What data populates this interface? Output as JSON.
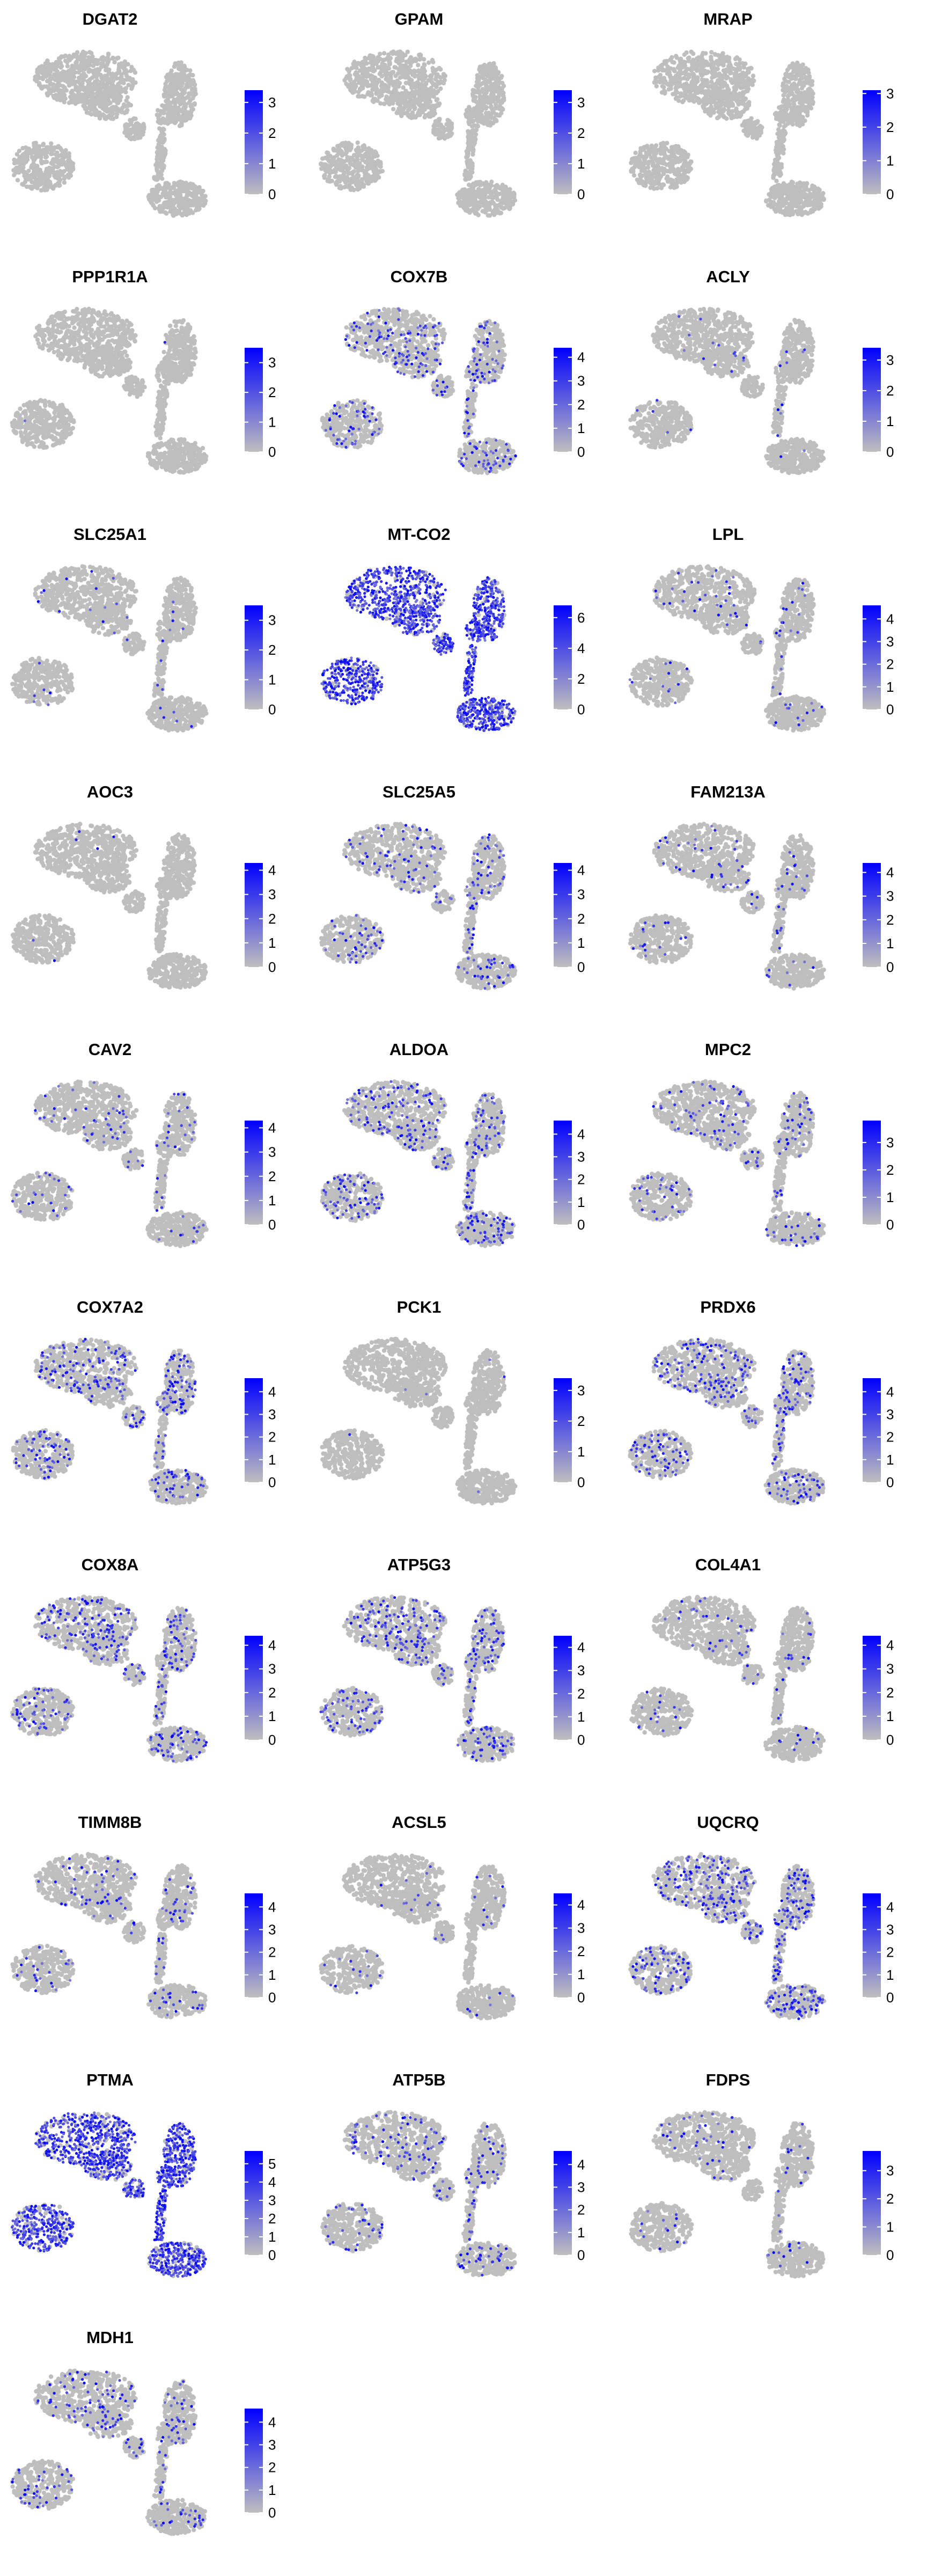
{
  "colors": {
    "low": "#BEBEBE",
    "high": "#0000FF",
    "background": "#FFFFFF",
    "text": "#000000"
  },
  "chart_data": [
    {
      "type": "scatter",
      "title": "DGAT2",
      "ylim": [
        0,
        3.4
      ],
      "ticks": [
        3,
        2,
        1,
        0
      ],
      "tick_labels": [
        "3",
        "2",
        "1",
        "0"
      ],
      "colorbar_max": 3.4,
      "expressing_fraction": 0.0,
      "seed": 11
    },
    {
      "type": "scatter",
      "title": "GPAM",
      "ylim": [
        0,
        3.4
      ],
      "ticks": [
        3,
        2,
        1,
        0
      ],
      "tick_labels": [
        "3",
        "2",
        "1",
        "0"
      ],
      "colorbar_max": 3.4,
      "expressing_fraction": 0.0,
      "seed": 12
    },
    {
      "type": "scatter",
      "title": "MRAP",
      "ylim": [
        0,
        3.1
      ],
      "ticks": [
        3,
        2,
        1,
        0
      ],
      "tick_labels": [
        "3",
        "2",
        "1",
        "0"
      ],
      "colorbar_max": 3.1,
      "expressing_fraction": 0.0,
      "seed": 13
    },
    {
      "type": "scatter",
      "title": "PPP1R1A",
      "ylim": [
        0,
        3.5
      ],
      "ticks": [
        3,
        2,
        1,
        0
      ],
      "tick_labels": [
        "3",
        "2",
        "1",
        "0"
      ],
      "colorbar_max": 3.5,
      "expressing_fraction": 0.002,
      "seed": 14
    },
    {
      "type": "scatter",
      "title": "COX7B",
      "ylim": [
        0,
        4.4
      ],
      "ticks": [
        4,
        3,
        2,
        1,
        0
      ],
      "tick_labels": [
        "4",
        "3",
        "2",
        "1",
        "0"
      ],
      "colorbar_max": 4.4,
      "expressing_fraction": 0.15,
      "seed": 15
    },
    {
      "type": "scatter",
      "title": "ACLY",
      "ylim": [
        0,
        3.4
      ],
      "ticks": [
        3,
        2,
        1,
        0
      ],
      "tick_labels": [
        "3",
        "2",
        "1",
        "0"
      ],
      "colorbar_max": 3.4,
      "expressing_fraction": 0.02,
      "seed": 16
    },
    {
      "type": "scatter",
      "title": "SLC25A1",
      "ylim": [
        0,
        3.5
      ],
      "ticks": [
        3,
        2,
        1,
        0
      ],
      "tick_labels": [
        "3",
        "2",
        "1",
        "0"
      ],
      "colorbar_max": 3.5,
      "expressing_fraction": 0.015,
      "seed": 17
    },
    {
      "type": "scatter",
      "title": "MT-CO2",
      "ylim": [
        0,
        6.8
      ],
      "ticks": [
        6,
        4,
        2,
        0
      ],
      "tick_labels": [
        "6",
        "4",
        "2",
        "0"
      ],
      "colorbar_max": 6.8,
      "expressing_fraction": 0.9,
      "seed": 18
    },
    {
      "type": "scatter",
      "title": "LPL",
      "ylim": [
        0,
        4.6
      ],
      "ticks": [
        4,
        3,
        2,
        1,
        0
      ],
      "tick_labels": [
        "4",
        "3",
        "2",
        "1",
        "0"
      ],
      "colorbar_max": 4.6,
      "expressing_fraction": 0.05,
      "seed": 19
    },
    {
      "type": "scatter",
      "title": "AOC3",
      "ylim": [
        0,
        4.3
      ],
      "ticks": [
        4,
        3,
        2,
        1,
        0
      ],
      "tick_labels": [
        "4",
        "3",
        "2",
        "1",
        "0"
      ],
      "colorbar_max": 4.3,
      "expressing_fraction": 0.005,
      "seed": 20
    },
    {
      "type": "scatter",
      "title": "SLC25A5",
      "ylim": [
        0,
        4.3
      ],
      "ticks": [
        4,
        3,
        2,
        1,
        0
      ],
      "tick_labels": [
        "4",
        "3",
        "2",
        "1",
        "0"
      ],
      "colorbar_max": 4.3,
      "expressing_fraction": 0.12,
      "seed": 21
    },
    {
      "type": "scatter",
      "title": "FAM213A",
      "ylim": [
        0,
        4.4
      ],
      "ticks": [
        4,
        3,
        2,
        1,
        0
      ],
      "tick_labels": [
        "4",
        "3",
        "2",
        "1",
        "0"
      ],
      "colorbar_max": 4.4,
      "expressing_fraction": 0.05,
      "seed": 22
    },
    {
      "type": "scatter",
      "title": "CAV2",
      "ylim": [
        0,
        4.3
      ],
      "ticks": [
        4,
        3,
        2,
        1,
        0
      ],
      "tick_labels": [
        "4",
        "3",
        "2",
        "1",
        "0"
      ],
      "colorbar_max": 4.3,
      "expressing_fraction": 0.06,
      "seed": 23
    },
    {
      "type": "scatter",
      "title": "ALDOA",
      "ylim": [
        0,
        4.6
      ],
      "ticks": [
        4,
        3,
        2,
        1,
        0
      ],
      "tick_labels": [
        "4",
        "3",
        "2",
        "1",
        "0"
      ],
      "colorbar_max": 4.6,
      "expressing_fraction": 0.2,
      "seed": 24
    },
    {
      "type": "scatter",
      "title": "MPC2",
      "ylim": [
        0,
        3.8
      ],
      "ticks": [
        3,
        2,
        1,
        0
      ],
      "tick_labels": [
        "3",
        "2",
        "1",
        "0"
      ],
      "colorbar_max": 3.8,
      "expressing_fraction": 0.1,
      "seed": 25
    },
    {
      "type": "scatter",
      "title": "COX7A2",
      "ylim": [
        0,
        4.6
      ],
      "ticks": [
        4,
        3,
        2,
        1,
        0
      ],
      "tick_labels": [
        "4",
        "3",
        "2",
        "1",
        "0"
      ],
      "colorbar_max": 4.6,
      "expressing_fraction": 0.2,
      "seed": 26
    },
    {
      "type": "scatter",
      "title": "PCK1",
      "ylim": [
        0,
        3.4
      ],
      "ticks": [
        3,
        2,
        1,
        0
      ],
      "tick_labels": [
        "3",
        "2",
        "1",
        "0"
      ],
      "colorbar_max": 3.4,
      "expressing_fraction": 0.003,
      "seed": 27
    },
    {
      "type": "scatter",
      "title": "PRDX6",
      "ylim": [
        0,
        4.6
      ],
      "ticks": [
        4,
        3,
        2,
        1,
        0
      ],
      "tick_labels": [
        "4",
        "3",
        "2",
        "1",
        "0"
      ],
      "colorbar_max": 4.6,
      "expressing_fraction": 0.2,
      "seed": 28
    },
    {
      "type": "scatter",
      "title": "COX8A",
      "ylim": [
        0,
        4.4
      ],
      "ticks": [
        4,
        3,
        2,
        1,
        0
      ],
      "tick_labels": [
        "4",
        "3",
        "2",
        "1",
        "0"
      ],
      "colorbar_max": 4.4,
      "expressing_fraction": 0.2,
      "seed": 29
    },
    {
      "type": "scatter",
      "title": "ATP5G3",
      "ylim": [
        0,
        4.5
      ],
      "ticks": [
        4,
        3,
        2,
        1,
        0
      ],
      "tick_labels": [
        "4",
        "3",
        "2",
        "1",
        "0"
      ],
      "colorbar_max": 4.5,
      "expressing_fraction": 0.2,
      "seed": 30
    },
    {
      "type": "scatter",
      "title": "COL4A1",
      "ylim": [
        0,
        4.4
      ],
      "ticks": [
        4,
        3,
        2,
        1,
        0
      ],
      "tick_labels": [
        "4",
        "3",
        "2",
        "1",
        "0"
      ],
      "colorbar_max": 4.4,
      "expressing_fraction": 0.05,
      "seed": 31
    },
    {
      "type": "scatter",
      "title": "TIMM8B",
      "ylim": [
        0,
        4.6
      ],
      "ticks": [
        4,
        3,
        2,
        1,
        0
      ],
      "tick_labels": [
        "4",
        "3",
        "2",
        "1",
        "0"
      ],
      "colorbar_max": 4.6,
      "expressing_fraction": 0.08,
      "seed": 32
    },
    {
      "type": "scatter",
      "title": "ACSL5",
      "ylim": [
        0,
        4.5
      ],
      "ticks": [
        4,
        3,
        2,
        1,
        0
      ],
      "tick_labels": [
        "4",
        "3",
        "2",
        "1",
        "0"
      ],
      "colorbar_max": 4.5,
      "expressing_fraction": 0.03,
      "seed": 33
    },
    {
      "type": "scatter",
      "title": "UQCRQ",
      "ylim": [
        0,
        4.6
      ],
      "ticks": [
        4,
        3,
        2,
        1,
        0
      ],
      "tick_labels": [
        "4",
        "3",
        "2",
        "1",
        "0"
      ],
      "colorbar_max": 4.6,
      "expressing_fraction": 0.25,
      "seed": 34
    },
    {
      "type": "scatter",
      "title": "PTMA",
      "ylim": [
        0,
        5.7
      ],
      "ticks": [
        5,
        4,
        3,
        2,
        1,
        0
      ],
      "tick_labels": [
        "5",
        "4",
        "3",
        "2",
        "1",
        "0"
      ],
      "colorbar_max": 5.7,
      "expressing_fraction": 0.85,
      "seed": 35
    },
    {
      "type": "scatter",
      "title": "ATP5B",
      "ylim": [
        0,
        4.6
      ],
      "ticks": [
        4,
        3,
        2,
        1,
        0
      ],
      "tick_labels": [
        "4",
        "3",
        "2",
        "1",
        "0"
      ],
      "colorbar_max": 4.6,
      "expressing_fraction": 0.1,
      "seed": 36
    },
    {
      "type": "scatter",
      "title": "FDPS",
      "ylim": [
        0,
        3.7
      ],
      "ticks": [
        3,
        2,
        1,
        0
      ],
      "tick_labels": [
        "3",
        "2",
        "1",
        "0"
      ],
      "colorbar_max": 3.7,
      "expressing_fraction": 0.04,
      "seed": 37
    },
    {
      "type": "scatter",
      "title": "MDH1",
      "ylim": [
        0,
        4.6
      ],
      "ticks": [
        4,
        3,
        2,
        1,
        0
      ],
      "tick_labels": [
        "4",
        "3",
        "2",
        "1",
        "0"
      ],
      "colorbar_max": 4.6,
      "expressing_fraction": 0.1,
      "seed": 38
    }
  ]
}
